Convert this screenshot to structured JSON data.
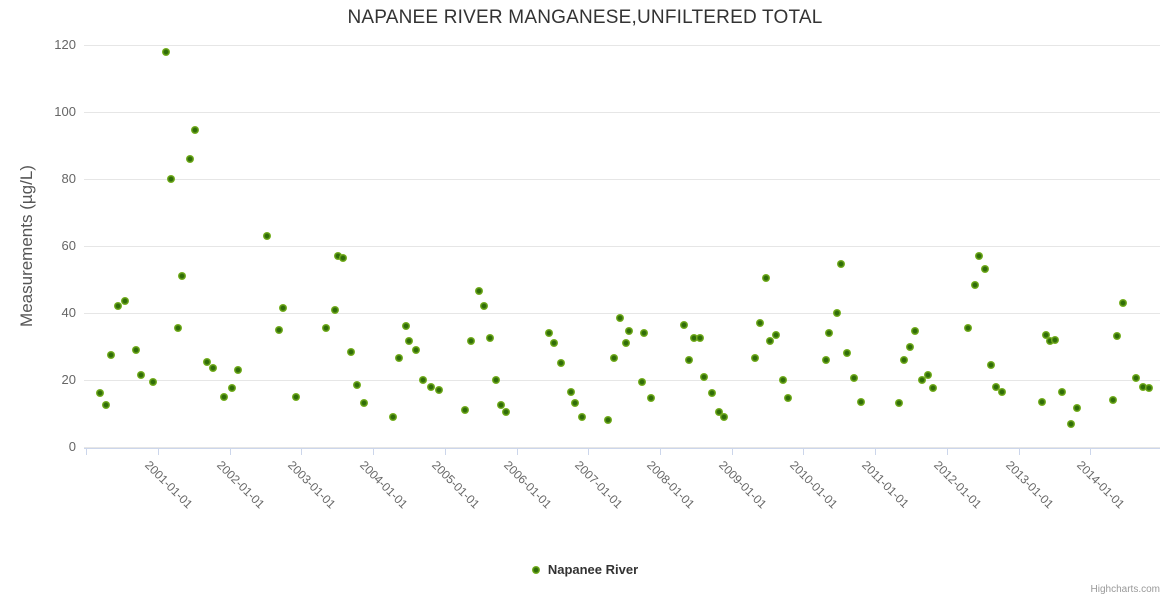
{
  "chart": {
    "title": "NAPANEE RIVER MANGANESE,UNFILTERED TOTAL",
    "y_axis_title": "Measurements (µg/L)",
    "legend_label": "Napanee River",
    "credit": "Highcharts.com",
    "series_color": "#7db72a",
    "background_color": "#ffffff",
    "gridline_color": "#e6e6e6",
    "axis_line_color": "#ccd6eb"
  },
  "chart_data": {
    "type": "scatter",
    "title": "NAPANEE RIVER MANGANESE,UNFILTERED TOTAL",
    "xlabel": "",
    "ylabel": "Measurements (µg/L)",
    "ylim": [
      0,
      120
    ],
    "y_ticks": [
      0,
      20,
      40,
      60,
      80,
      100,
      120
    ],
    "x_range_years": [
      1999.97,
      2014.97
    ],
    "grid": true,
    "legend_position": "bottom-center",
    "x_ticks": [
      {
        "year": 2000,
        "label": ""
      },
      {
        "year": 2001,
        "label": "2001-01-01"
      },
      {
        "year": 2002,
        "label": "2002-01-01"
      },
      {
        "year": 2003,
        "label": "2003-01-01"
      },
      {
        "year": 2004,
        "label": "2004-01-01"
      },
      {
        "year": 2005,
        "label": "2005-01-01"
      },
      {
        "year": 2006,
        "label": "2006-01-01"
      },
      {
        "year": 2007,
        "label": "2007-01-01"
      },
      {
        "year": 2008,
        "label": "2008-01-01"
      },
      {
        "year": 2009,
        "label": "2009-01-01"
      },
      {
        "year": 2010,
        "label": "2010-01-01"
      },
      {
        "year": 2011,
        "label": "2011-01-01"
      },
      {
        "year": 2012,
        "label": "2012-01-01"
      },
      {
        "year": 2013,
        "label": "2013-01-01"
      },
      {
        "year": 2014,
        "label": "2014-01-01"
      }
    ],
    "series": [
      {
        "name": "Napanee River",
        "color": "#7db72a",
        "points": [
          [
            2000.19,
            16
          ],
          [
            2000.28,
            12.5
          ],
          [
            2000.34,
            27.5
          ],
          [
            2000.44,
            42
          ],
          [
            2000.54,
            43.5
          ],
          [
            2000.69,
            29
          ],
          [
            2000.76,
            21.5
          ],
          [
            2000.93,
            19.5
          ],
          [
            2001.11,
            118
          ],
          [
            2001.18,
            80
          ],
          [
            2001.28,
            35.5
          ],
          [
            2001.33,
            51
          ],
          [
            2001.45,
            86
          ],
          [
            2001.52,
            94.5
          ],
          [
            2001.68,
            25.5
          ],
          [
            2001.77,
            23.5
          ],
          [
            2001.92,
            15
          ],
          [
            2002.03,
            17.5
          ],
          [
            2002.11,
            23
          ],
          [
            2002.52,
            63
          ],
          [
            2002.69,
            35
          ],
          [
            2002.75,
            41.5
          ],
          [
            2002.92,
            15
          ],
          [
            2003.34,
            35.5
          ],
          [
            2003.47,
            41
          ],
          [
            2003.51,
            57
          ],
          [
            2003.58,
            56.5
          ],
          [
            2003.69,
            28.5
          ],
          [
            2003.78,
            18.5
          ],
          [
            2003.87,
            13
          ],
          [
            2004.28,
            9
          ],
          [
            2004.36,
            26.5
          ],
          [
            2004.46,
            36
          ],
          [
            2004.5,
            31.5
          ],
          [
            2004.6,
            29
          ],
          [
            2004.7,
            20
          ],
          [
            2004.81,
            18
          ],
          [
            2004.92,
            17
          ],
          [
            2005.28,
            11
          ],
          [
            2005.36,
            31.5
          ],
          [
            2005.48,
            46.5
          ],
          [
            2005.54,
            42
          ],
          [
            2005.63,
            32.5
          ],
          [
            2005.71,
            20
          ],
          [
            2005.79,
            12.5
          ],
          [
            2005.85,
            10.5
          ],
          [
            2006.45,
            34
          ],
          [
            2006.52,
            31
          ],
          [
            2006.62,
            25
          ],
          [
            2006.76,
            16.5
          ],
          [
            2006.82,
            13
          ],
          [
            2006.91,
            9
          ],
          [
            2007.27,
            8
          ],
          [
            2007.36,
            26.5
          ],
          [
            2007.44,
            38.5
          ],
          [
            2007.52,
            31
          ],
          [
            2007.57,
            34.5
          ],
          [
            2007.75,
            19.5
          ],
          [
            2007.77,
            34
          ],
          [
            2007.88,
            14.5
          ],
          [
            2008.33,
            36.5
          ],
          [
            2008.41,
            26
          ],
          [
            2008.48,
            32.5
          ],
          [
            2008.56,
            32.5
          ],
          [
            2008.61,
            21
          ],
          [
            2008.72,
            16
          ],
          [
            2008.82,
            10.5
          ],
          [
            2008.89,
            9
          ],
          [
            2009.33,
            26.5
          ],
          [
            2009.4,
            37
          ],
          [
            2009.48,
            50.5
          ],
          [
            2009.54,
            31.5
          ],
          [
            2009.62,
            33.5
          ],
          [
            2009.72,
            20
          ],
          [
            2009.78,
            14.5
          ],
          [
            2010.31,
            26
          ],
          [
            2010.36,
            34
          ],
          [
            2010.47,
            40
          ],
          [
            2010.52,
            54.5
          ],
          [
            2010.61,
            28
          ],
          [
            2010.71,
            20.5
          ],
          [
            2010.8,
            13.5
          ],
          [
            2011.33,
            13
          ],
          [
            2011.4,
            26
          ],
          [
            2011.48,
            30
          ],
          [
            2011.55,
            34.5
          ],
          [
            2011.65,
            20
          ],
          [
            2011.74,
            21.5
          ],
          [
            2011.8,
            17.5
          ],
          [
            2012.3,
            35.5
          ],
          [
            2012.39,
            48.5
          ],
          [
            2012.45,
            57
          ],
          [
            2012.53,
            53
          ],
          [
            2012.61,
            24.5
          ],
          [
            2012.69,
            18
          ],
          [
            2012.77,
            16.5
          ],
          [
            2013.32,
            13.5
          ],
          [
            2013.38,
            33.5
          ],
          [
            2013.44,
            31.5
          ],
          [
            2013.51,
            32
          ],
          [
            2013.61,
            16.5
          ],
          [
            2013.73,
            7
          ],
          [
            2013.81,
            11.5
          ],
          [
            2014.32,
            14
          ],
          [
            2014.37,
            33
          ],
          [
            2014.46,
            43
          ],
          [
            2014.63,
            20.5
          ],
          [
            2014.73,
            18
          ],
          [
            2014.82,
            17.5
          ]
        ]
      }
    ]
  }
}
